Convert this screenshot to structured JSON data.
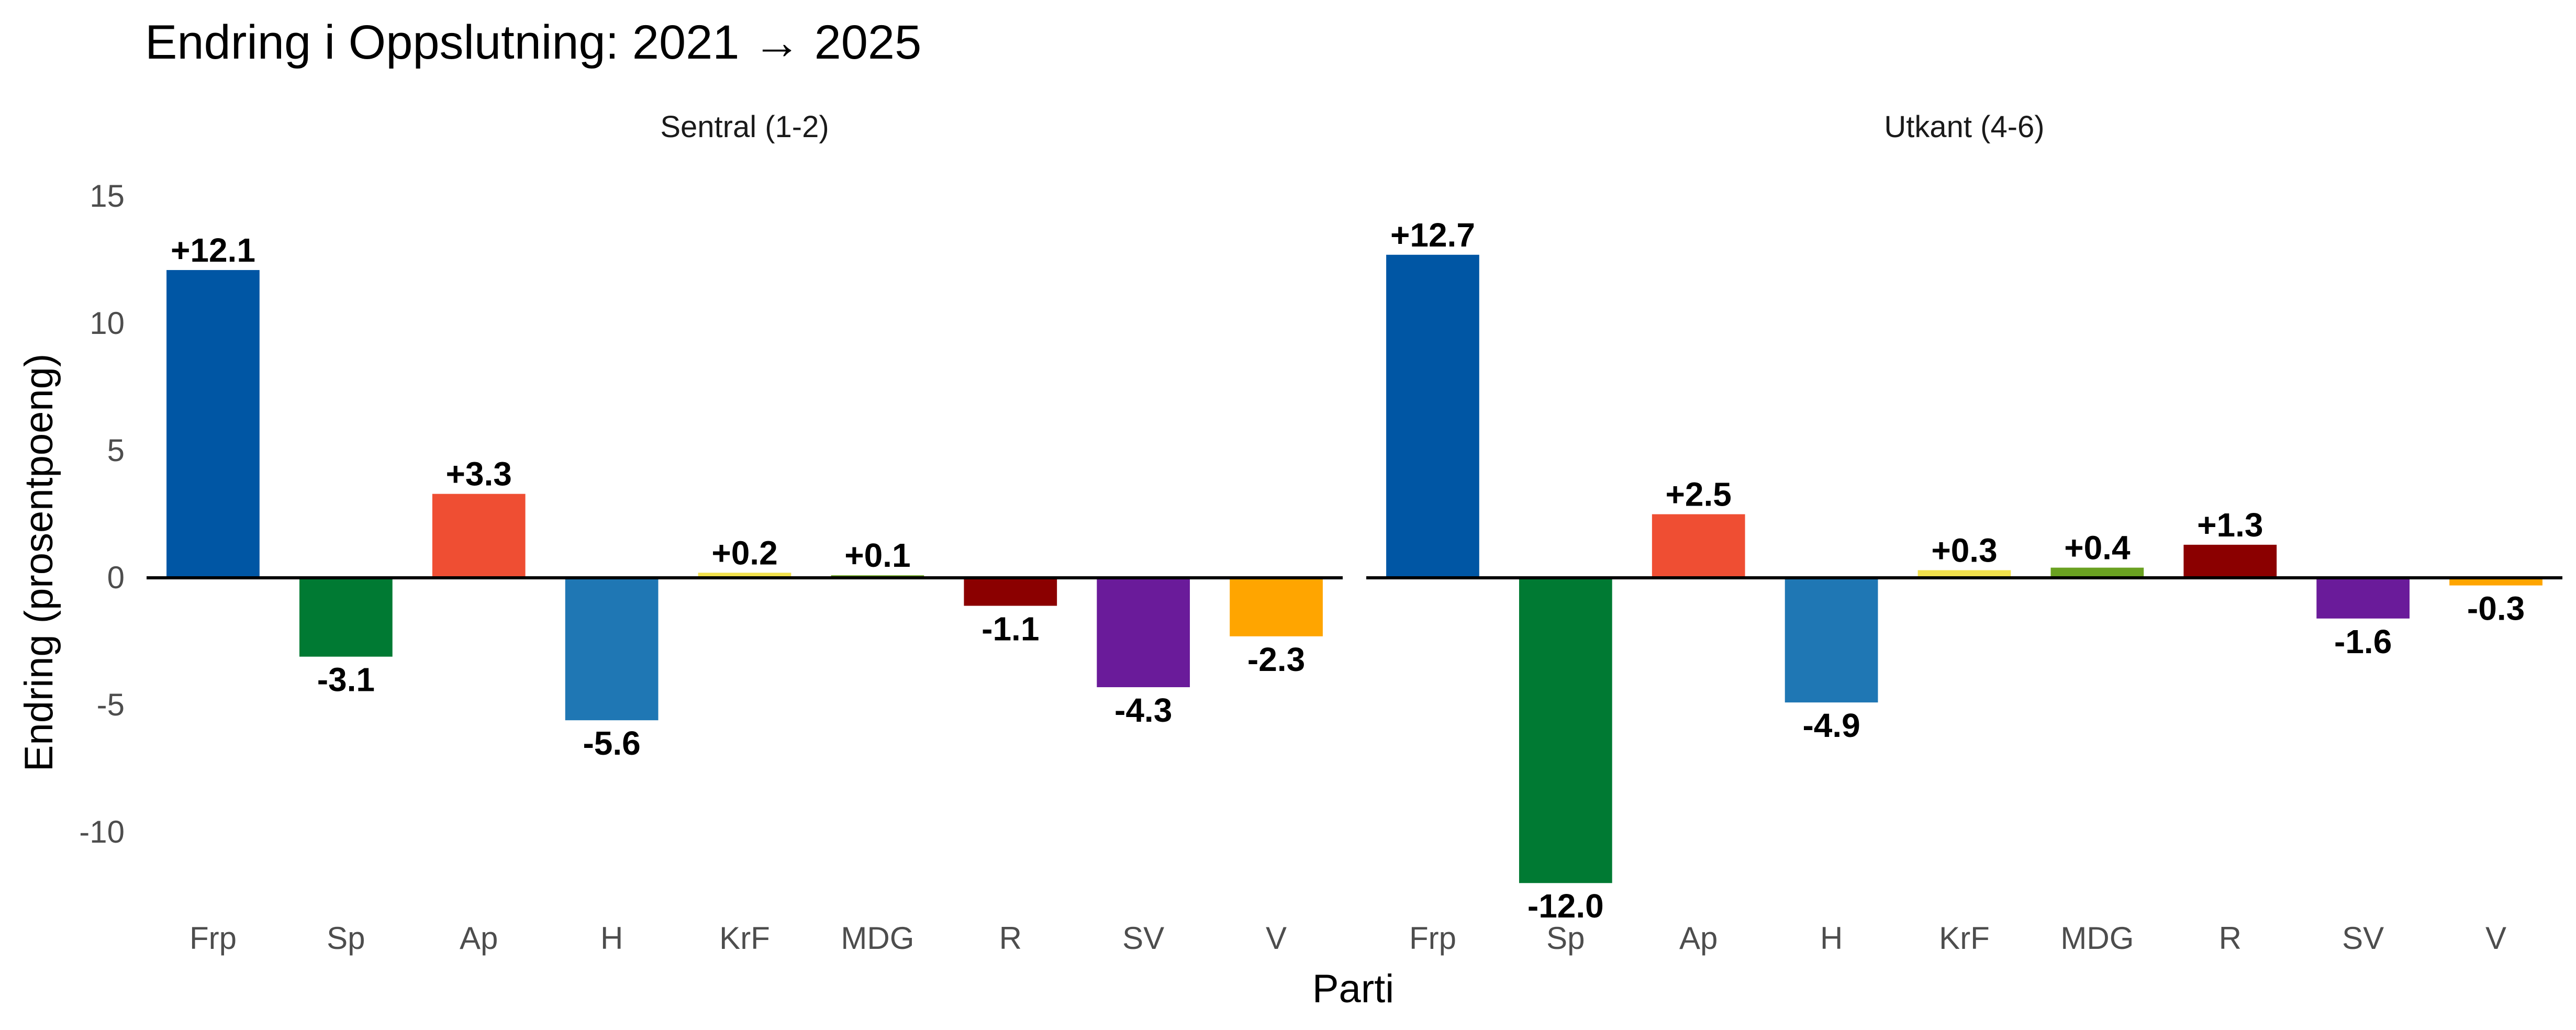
{
  "chart_data": {
    "type": "bar",
    "title": "Endring i Oppslutning: 2021 → 2025",
    "xlabel": "Parti",
    "ylabel": "Endring (prosentpoeng)",
    "ylim": [
      -13.6,
      15
    ],
    "yticks": [
      "15",
      "10",
      "5",
      "0",
      "-5",
      "-10"
    ],
    "ytick_values": [
      15,
      10,
      5,
      0,
      -5,
      -10
    ],
    "categories": [
      "Frp",
      "Sp",
      "Ap",
      "H",
      "KrF",
      "MDG",
      "R",
      "SV",
      "V"
    ],
    "colors": [
      "#0056A4",
      "#007A33",
      "#EF4E33",
      "#1F77B4",
      "#F2E14C",
      "#6AA121",
      "#8B0000",
      "#6A1B9A",
      "#FFA500"
    ],
    "grid": false,
    "legend": "none",
    "panels": [
      {
        "strip": "Sentral (1-2)",
        "values": [
          12.1,
          -3.1,
          3.3,
          -5.6,
          0.2,
          0.1,
          -1.1,
          -4.3,
          -2.3
        ],
        "labels": [
          "+12.1",
          "-3.1",
          "+3.3",
          "-5.6",
          "+0.2",
          "+0.1",
          "-1.1",
          "-4.3",
          "-2.3"
        ]
      },
      {
        "strip": "Utkant (4-6)",
        "values": [
          12.7,
          -12.0,
          2.5,
          -4.9,
          0.3,
          0.4,
          1.3,
          -1.6,
          -0.3
        ],
        "labels": [
          "+12.7",
          "-12.0",
          "+2.5",
          "-4.9",
          "+0.3",
          "+0.4",
          "+1.3",
          "-1.6",
          "-0.3"
        ]
      }
    ]
  }
}
